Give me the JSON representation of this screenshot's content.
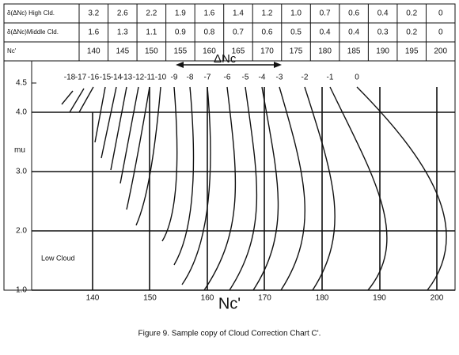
{
  "table": {
    "rows": [
      {
        "label": "δ(ΔNc) High Cld.",
        "cells": [
          "3.2",
          "2.6",
          "2.2",
          "1.9",
          "1.6",
          "1.4",
          "1.2",
          "1.0",
          "0.7",
          "0.6",
          "0.4",
          "0.2",
          "0"
        ]
      },
      {
        "label": "δ(ΔNc)Middle Cld.",
        "cells": [
          "1.6",
          "1.3",
          "1.1",
          "0.9",
          "0.8",
          "0.7",
          "0.6",
          "0.5",
          "0.4",
          "0.4",
          "0.3",
          "0.2",
          "0"
        ]
      },
      {
        "label": "Nc'",
        "cells": [
          "140",
          "145",
          "150",
          "155",
          "160",
          "165",
          "170",
          "175",
          "180",
          "185",
          "190",
          "195",
          "200"
        ]
      }
    ]
  },
  "chart": {
    "delta_label": "ΔNc",
    "y_label": "mu",
    "x_label": "Nc'",
    "region_label": "Low Cloud",
    "yticks": [
      "4.5",
      "4.0",
      "3.0",
      "2.0",
      "1.0"
    ],
    "xticks": [
      "140",
      "150",
      "160",
      "170",
      "180",
      "190",
      "200"
    ],
    "curve_labels": [
      "-18",
      "-17",
      "-16",
      "-15",
      "-14",
      "-13",
      "-12",
      "-11",
      "-10",
      "-9",
      "-8",
      "-7",
      "-6",
      "-5",
      "-4",
      "-3",
      "-2",
      "-1",
      "0"
    ]
  },
  "caption": "Figure 9. Sample copy of Cloud Correction Chart C'."
}
